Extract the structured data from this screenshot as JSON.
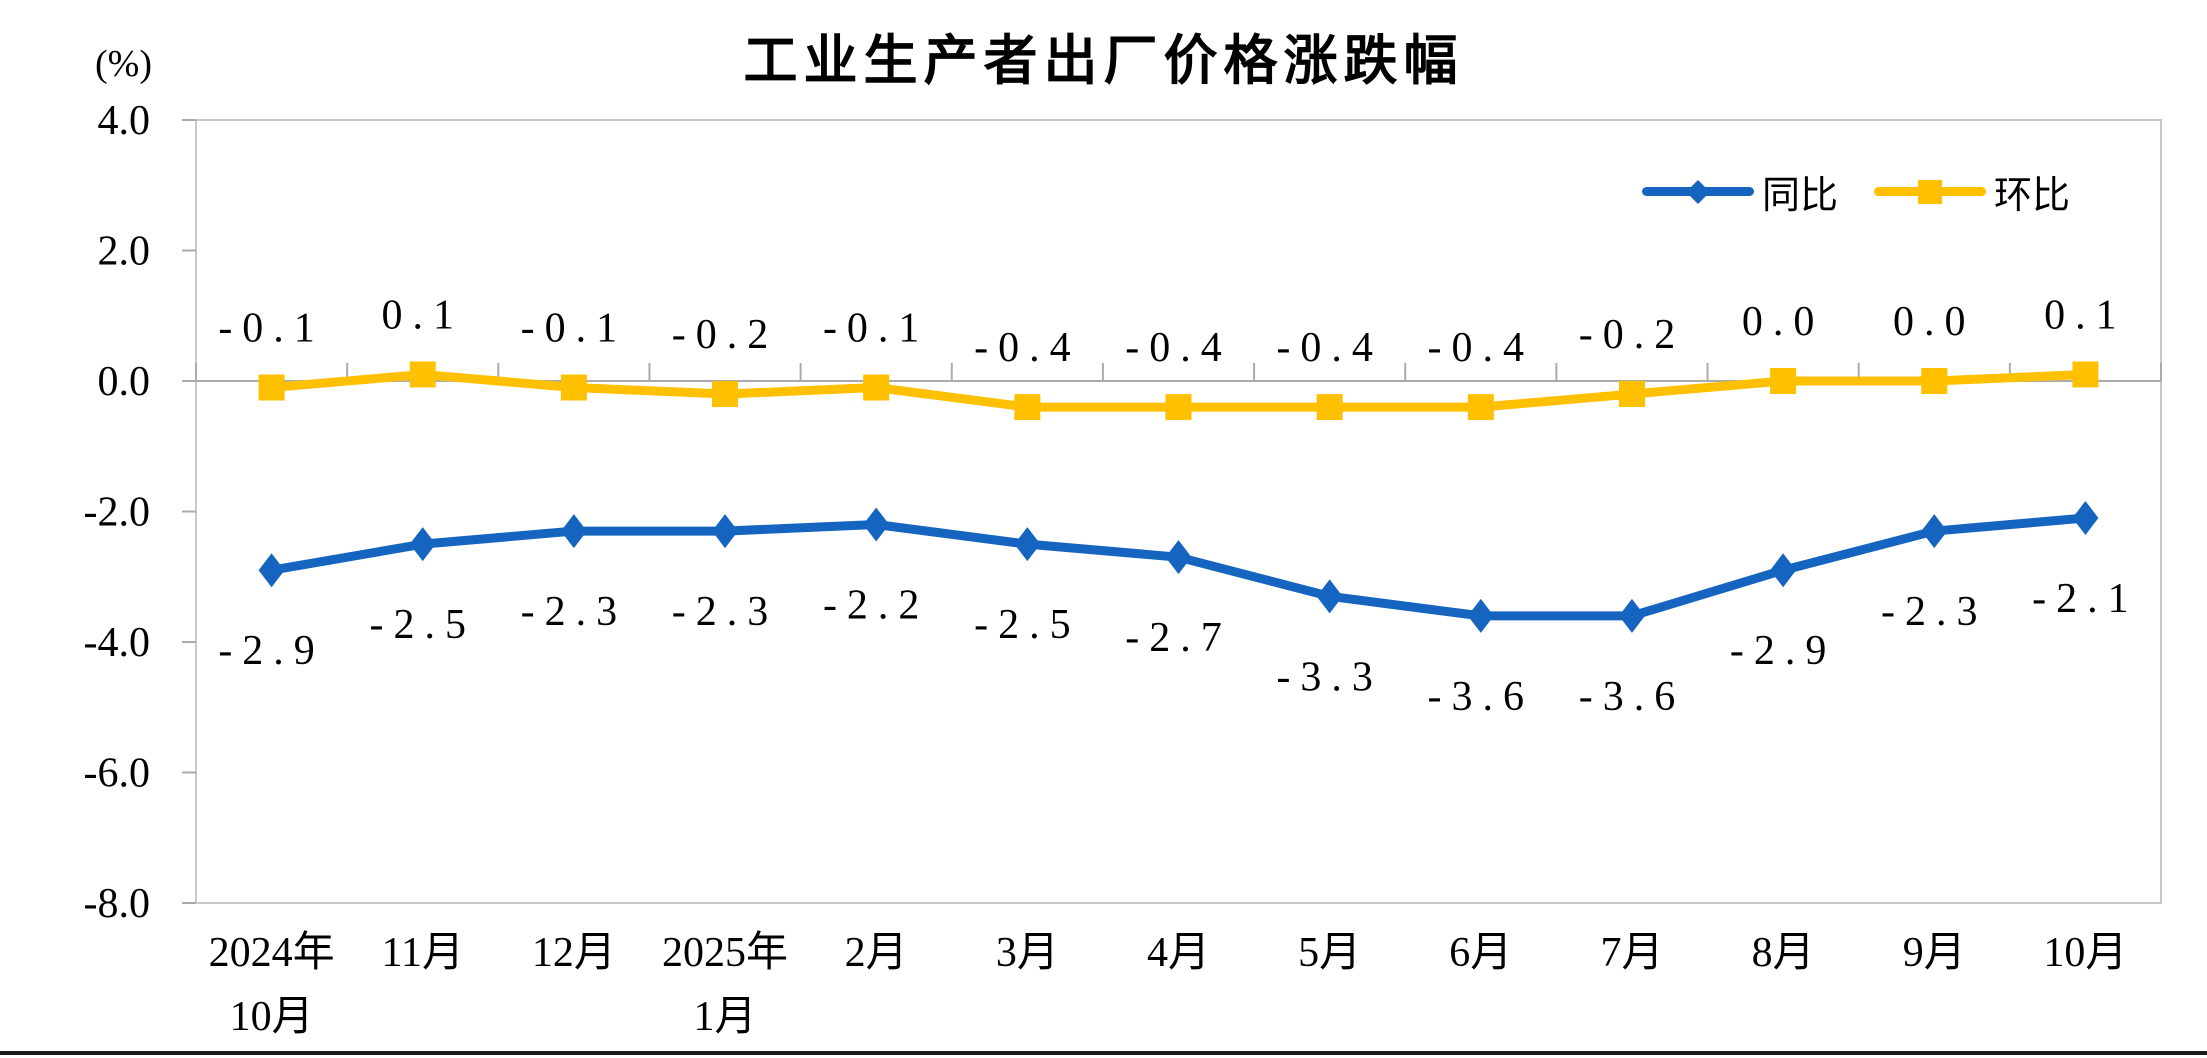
{
  "chart_data": {
    "type": "line",
    "title": "工业生产者出厂价格涨跌幅",
    "unit_label": "(%)",
    "categories": [
      "2024年\n10月",
      "11月",
      "12月",
      "2025年\n1月",
      "2月",
      "3月",
      "4月",
      "5月",
      "6月",
      "7月",
      "8月",
      "9月",
      "10月"
    ],
    "series": [
      {
        "name": "同比",
        "color": "#1565C0",
        "marker": "diamond",
        "label_position": "below",
        "values": [
          -2.9,
          -2.5,
          -2.3,
          -2.3,
          -2.2,
          -2.5,
          -2.7,
          -3.3,
          -3.6,
          -3.6,
          -2.9,
          -2.3,
          -2.1
        ],
        "labels": [
          "-2.9",
          "-2.5",
          "-2.3",
          "-2.3",
          "-2.2",
          "-2.5",
          "-2.7",
          "-3.3",
          "-3.6",
          "-3.6",
          "-2.9",
          "-2.3",
          "-2.1"
        ]
      },
      {
        "name": "环比",
        "color": "#FFC000",
        "marker": "square",
        "label_position": "above",
        "values": [
          -0.1,
          0.1,
          -0.1,
          -0.2,
          -0.1,
          -0.4,
          -0.4,
          -0.4,
          -0.4,
          -0.2,
          0.0,
          0.0,
          0.1
        ],
        "labels": [
          "-0.1",
          "0.1",
          "-0.1",
          "-0.2",
          "-0.1",
          "-0.4",
          "-0.4",
          "-0.4",
          "-0.4",
          "-0.2",
          "0.0",
          "0.0",
          "0.1"
        ]
      }
    ],
    "y_axis": {
      "min": -8.0,
      "max": 4.0,
      "step": 2.0,
      "tick_labels": [
        "4.0",
        "2.0",
        "0.0",
        "-2.0",
        "-4.0",
        "-6.0",
        "-8.0"
      ]
    },
    "legend": {
      "position": "top-right"
    },
    "grid": false,
    "colors": {
      "plot_border": "#C9C9C9",
      "axis": "#ABABAB",
      "label_text": "#000000",
      "bottom_rule": "#1A1A1A"
    }
  }
}
